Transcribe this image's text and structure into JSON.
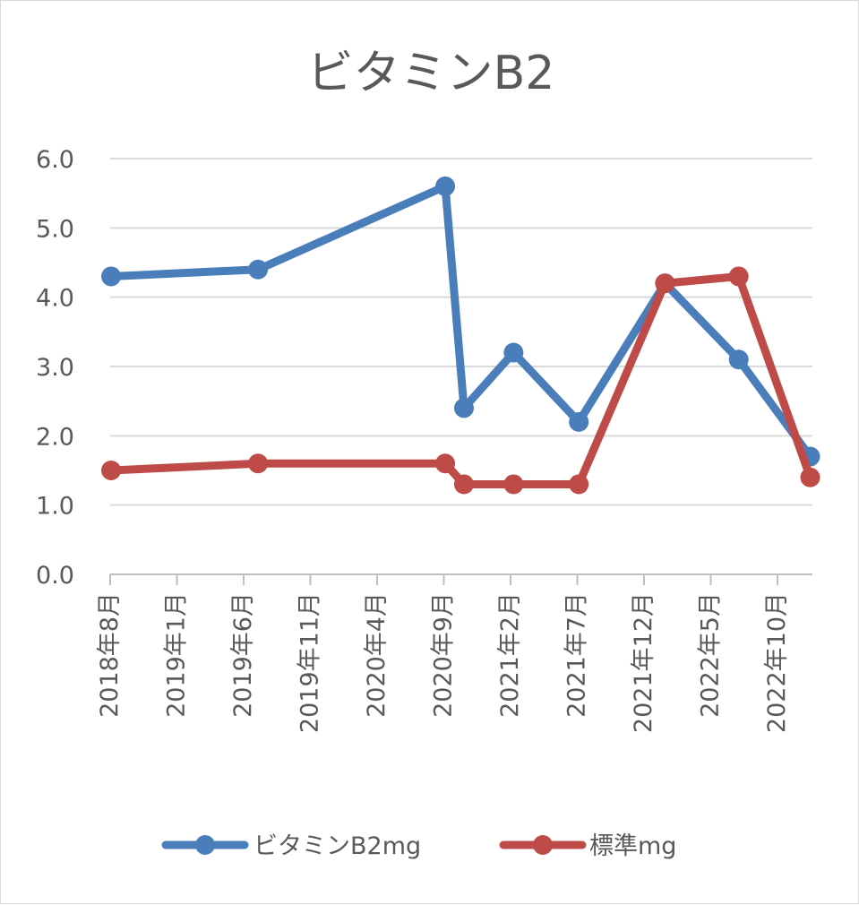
{
  "chart_data": {
    "type": "line",
    "title": "ビタミンB2",
    "x_ticks": [
      "2018年8月",
      "2019年1月",
      "2019年6月",
      "2019年11月",
      "2020年4月",
      "2020年9月",
      "2021年2月",
      "2021年7月",
      "2021年12月",
      "2022年5月",
      "2022年10月"
    ],
    "x_range": [
      "2018-08-01",
      "2022-11-20"
    ],
    "y_ticks": [
      "0.0",
      "1.0",
      "2.0",
      "3.0",
      "4.0",
      "5.0",
      "6.0"
    ],
    "ylim": [
      0,
      6
    ],
    "grid": true,
    "legend_position": "bottom",
    "series": [
      {
        "name": "ビタミンB2mg",
        "color": "#4a7ebb",
        "points": [
          {
            "x": "2018-08-03",
            "y": 4.3
          },
          {
            "x": "2019-06-28",
            "y": 4.4
          },
          {
            "x": "2020-08-20",
            "y": 5.6
          },
          {
            "x": "2020-10-01",
            "y": 2.4
          },
          {
            "x": "2021-01-20",
            "y": 3.2
          },
          {
            "x": "2021-06-15",
            "y": 2.2
          },
          {
            "x": "2021-12-25",
            "y": 4.2
          },
          {
            "x": "2022-06-08",
            "y": 3.1
          },
          {
            "x": "2022-11-15",
            "y": 1.7
          }
        ]
      },
      {
        "name": "標準mg",
        "color": "#be4b48",
        "points": [
          {
            "x": "2018-08-03",
            "y": 1.5
          },
          {
            "x": "2019-06-28",
            "y": 1.6
          },
          {
            "x": "2020-08-20",
            "y": 1.6
          },
          {
            "x": "2020-10-01",
            "y": 1.3
          },
          {
            "x": "2021-01-20",
            "y": 1.3
          },
          {
            "x": "2021-06-15",
            "y": 1.3
          },
          {
            "x": "2021-12-25",
            "y": 4.2
          },
          {
            "x": "2022-06-08",
            "y": 4.3
          },
          {
            "x": "2022-11-15",
            "y": 1.4
          }
        ]
      }
    ]
  }
}
